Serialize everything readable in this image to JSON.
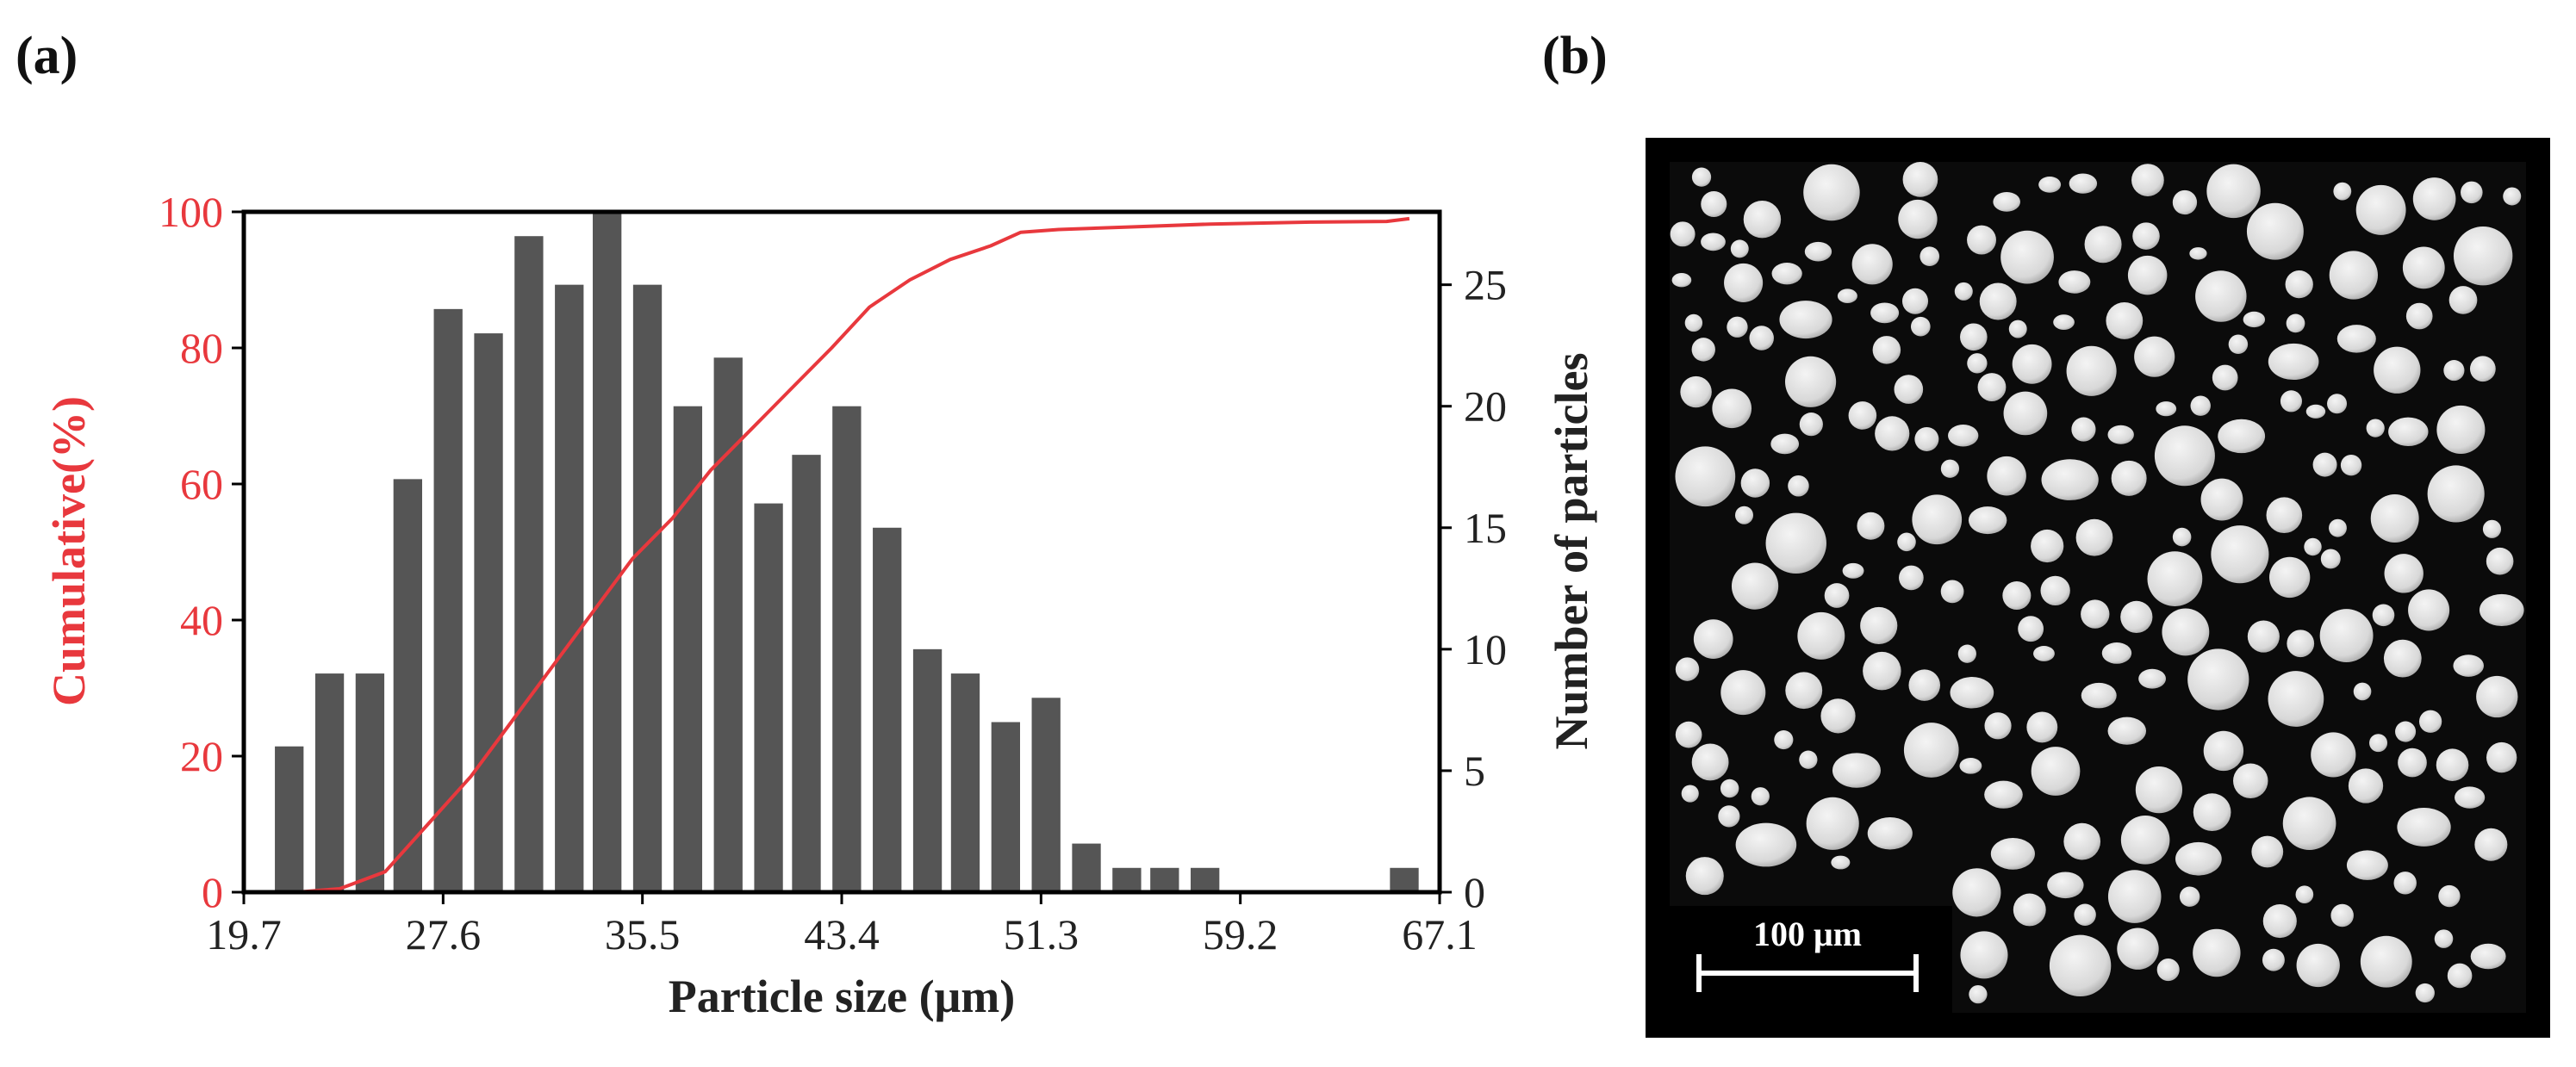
{
  "panels": {
    "a_label": "(a)",
    "b_label": "(b)"
  },
  "micrograph": {
    "scale_bar_label": "100 μm"
  },
  "chart_data": {
    "type": "bar",
    "xlabel": "Particle size (μm)",
    "ylabel_left": "Cumulative(%)",
    "ylabel_right": "Number of particles",
    "xlim": [
      19.7,
      67.1
    ],
    "ylim_left": [
      0,
      100
    ],
    "ylim_right": [
      0,
      28
    ],
    "x_ticks": [
      "19.7",
      "27.6",
      "35.5",
      "43.4",
      "51.3",
      "59.2",
      "67.1"
    ],
    "y_ticks_left": [
      "0",
      "20",
      "40",
      "60",
      "80",
      "100"
    ],
    "y_ticks_right": [
      "0",
      "5",
      "10",
      "15",
      "20",
      "25"
    ],
    "bin_width": 1.58,
    "series": [
      {
        "name": "Number of particles",
        "axis": "right",
        "type": "bar",
        "color": "#555555",
        "x": [
          21.5,
          23.1,
          24.7,
          26.2,
          27.8,
          29.4,
          31.0,
          32.6,
          34.1,
          35.7,
          37.3,
          38.9,
          40.5,
          42.0,
          43.6,
          45.2,
          46.8,
          48.3,
          49.9,
          51.5,
          53.1,
          54.7,
          56.2,
          57.8,
          65.7
        ],
        "values": [
          6,
          9,
          9,
          17,
          24,
          23,
          27,
          25,
          28,
          25,
          20,
          22,
          16,
          18,
          20,
          15,
          10,
          9,
          7,
          8,
          2,
          1,
          1,
          1,
          1
        ]
      },
      {
        "name": "Cumulative",
        "axis": "left",
        "type": "line",
        "color": "#e8383d",
        "x": [
          21.8,
          23.5,
          25.3,
          27.0,
          28.7,
          30.3,
          31.9,
          33.5,
          35.1,
          36.7,
          38.2,
          39.8,
          41.4,
          43.0,
          44.5,
          46.1,
          47.7,
          49.3,
          50.5,
          52.0,
          55.0,
          58.0,
          62.0,
          65.0,
          65.9
        ],
        "values": [
          0,
          0.5,
          3,
          10,
          17,
          25,
          33,
          41,
          49,
          55,
          62,
          68,
          74,
          80,
          86,
          90,
          93,
          95,
          97,
          97.4,
          97.8,
          98.2,
          98.5,
          98.6,
          99
        ]
      }
    ]
  }
}
